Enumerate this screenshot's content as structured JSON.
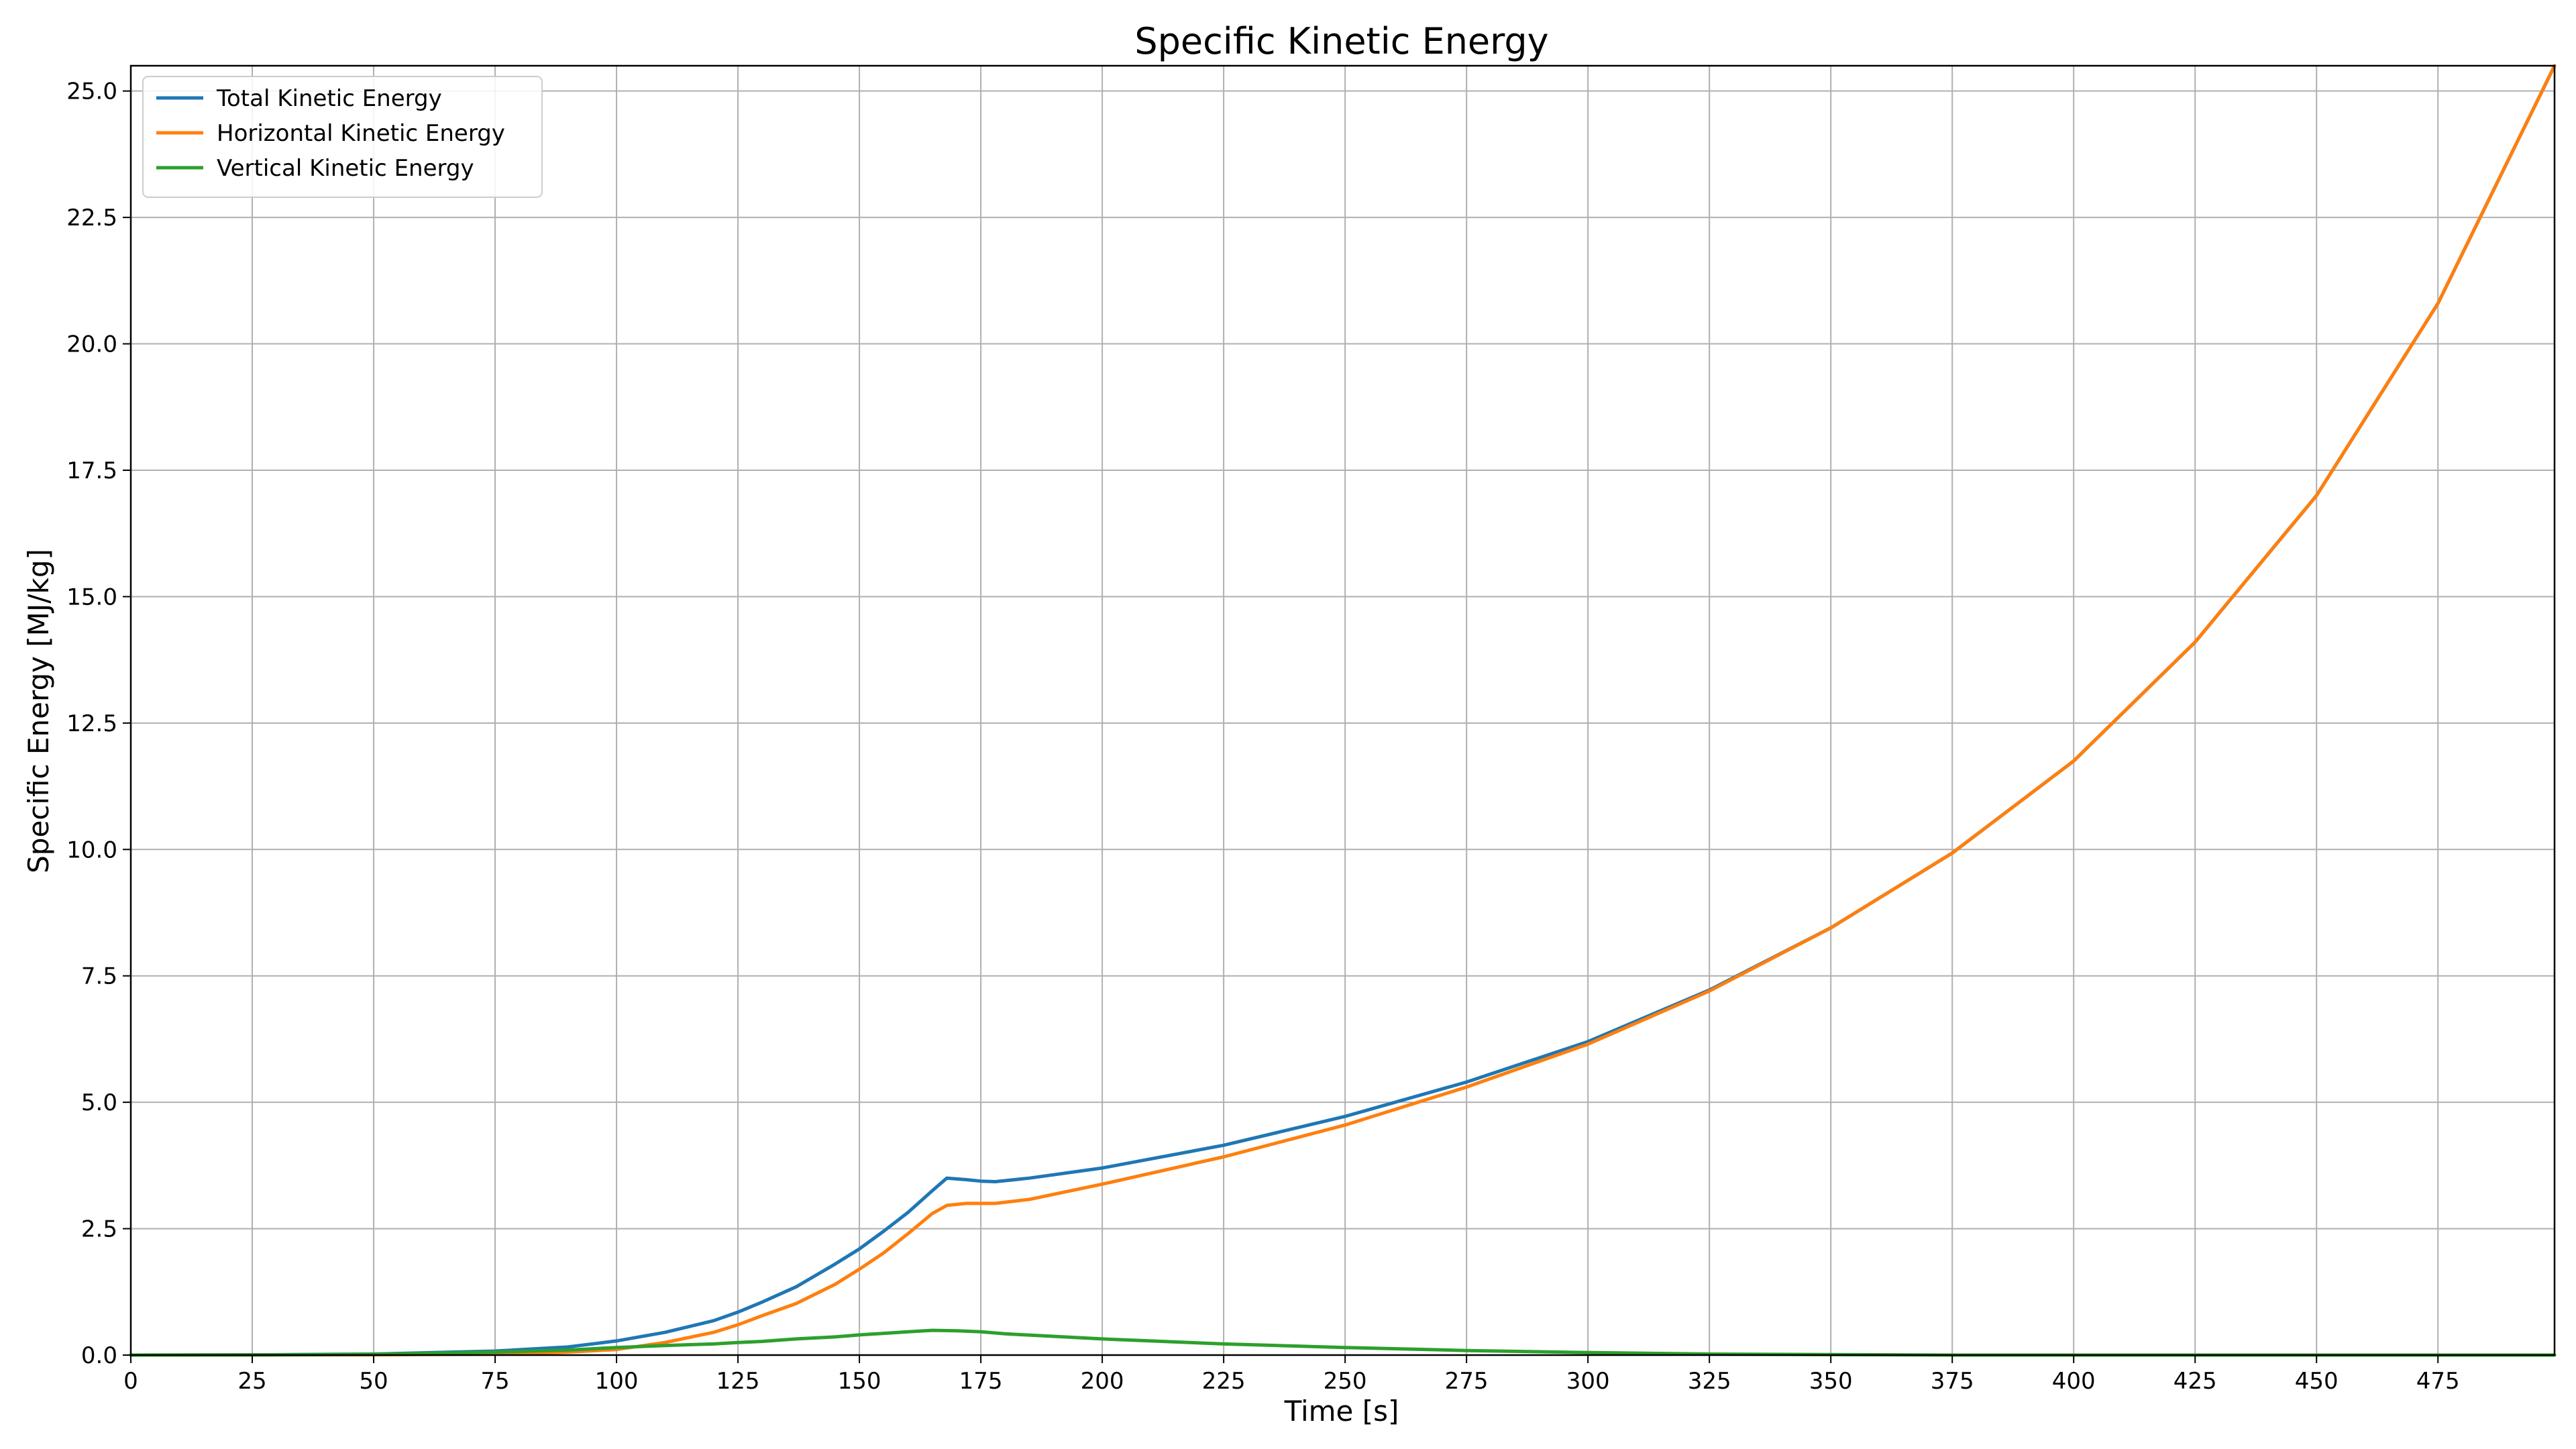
{
  "chart_data": {
    "type": "line",
    "title": "Specific Kinetic Energy",
    "xlabel": "Time [s]",
    "ylabel": "Specific Energy [MJ/kg]",
    "xlim": [
      0,
      499
    ],
    "ylim": [
      0,
      25.5
    ],
    "xticks": [
      "0",
      "25",
      "50",
      "75",
      "100",
      "125",
      "150",
      "175",
      "200",
      "225",
      "250",
      "275",
      "300",
      "325",
      "350",
      "375",
      "400",
      "425",
      "450",
      "475"
    ],
    "yticks": [
      "0.0",
      "2.5",
      "5.0",
      "7.5",
      "10.0",
      "12.5",
      "15.0",
      "17.5",
      "20.0",
      "22.5",
      "25.0"
    ],
    "grid": true,
    "legend_position": "top-left",
    "series": [
      {
        "name": "Total Kinetic Energy",
        "color": "#1f77b4",
        "x": [
          0,
          25,
          50,
          75,
          90,
          100,
          110,
          120,
          125,
          130,
          137,
          145,
          150,
          155,
          160,
          165,
          168,
          172,
          175,
          178,
          185,
          200,
          225,
          250,
          275,
          300,
          325,
          350,
          375,
          400,
          425,
          450,
          475,
          499
        ],
        "y": [
          0,
          0.005,
          0.02,
          0.08,
          0.16,
          0.28,
          0.45,
          0.68,
          0.85,
          1.05,
          1.35,
          1.8,
          2.1,
          2.45,
          2.82,
          3.25,
          3.5,
          3.47,
          3.44,
          3.43,
          3.5,
          3.7,
          4.15,
          4.72,
          5.4,
          6.2,
          7.22,
          8.45,
          9.93,
          11.75,
          14.1,
          17.0,
          20.8,
          25.5
        ]
      },
      {
        "name": "Horizontal Kinetic Energy",
        "color": "#ff7f0e",
        "x": [
          0,
          25,
          50,
          75,
          90,
          100,
          110,
          120,
          125,
          130,
          137,
          145,
          150,
          155,
          160,
          165,
          168,
          172,
          175,
          178,
          185,
          200,
          225,
          250,
          275,
          300,
          325,
          350,
          375,
          400,
          425,
          450,
          475,
          499
        ],
        "y": [
          0,
          0.001,
          0.005,
          0.02,
          0.06,
          0.11,
          0.25,
          0.45,
          0.6,
          0.78,
          1.02,
          1.4,
          1.7,
          2.02,
          2.4,
          2.8,
          2.96,
          3.0,
          3.0,
          3.0,
          3.08,
          3.38,
          3.92,
          4.55,
          5.3,
          6.15,
          7.2,
          8.45,
          9.93,
          11.75,
          14.1,
          17.0,
          20.8,
          25.5
        ]
      },
      {
        "name": "Vertical Kinetic Energy",
        "color": "#2ca02c",
        "x": [
          0,
          25,
          50,
          75,
          90,
          100,
          110,
          120,
          125,
          130,
          137,
          145,
          150,
          155,
          160,
          165,
          170,
          175,
          180,
          200,
          225,
          250,
          275,
          300,
          325,
          350,
          375,
          400,
          425,
          450,
          475,
          499
        ],
        "y": [
          0,
          0.003,
          0.015,
          0.06,
          0.1,
          0.15,
          0.19,
          0.22,
          0.25,
          0.27,
          0.32,
          0.36,
          0.4,
          0.43,
          0.46,
          0.49,
          0.48,
          0.46,
          0.42,
          0.32,
          0.22,
          0.15,
          0.09,
          0.05,
          0.02,
          0.01,
          0,
          0,
          0,
          0,
          0,
          0
        ]
      }
    ]
  }
}
